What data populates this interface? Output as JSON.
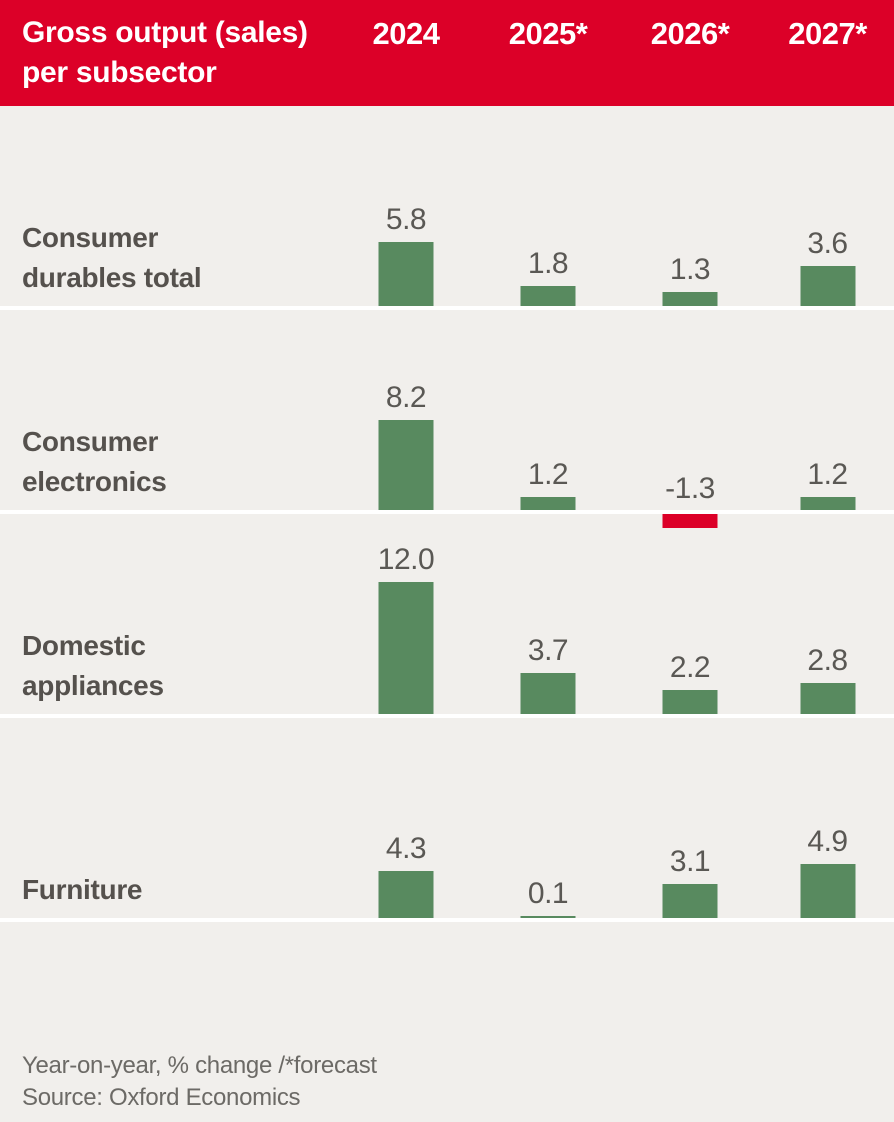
{
  "header": {
    "title_line1": "Gross output (sales)",
    "title_line2": "per subsector",
    "columns": [
      "2024",
      "2025*",
      "2026*",
      "2027*"
    ],
    "background_color": "#dc0028",
    "text_color": "#ffffff"
  },
  "chart_data": {
    "type": "bar",
    "title": "Gross output (sales) per subsector",
    "categories": [
      "2024",
      "2025*",
      "2026*",
      "2027*"
    ],
    "series": [
      {
        "name": "Consumer durables total",
        "values": [
          5.8,
          1.8,
          1.3,
          3.6
        ],
        "display": [
          "5.8",
          "1.8",
          "1.3",
          "3.6"
        ]
      },
      {
        "name": "Consumer electronics",
        "values": [
          8.2,
          1.2,
          -1.3,
          1.2
        ],
        "display": [
          "8.2",
          "1.2",
          "-1.3",
          "1.2"
        ]
      },
      {
        "name": "Domestic appliances",
        "values": [
          12.0,
          3.7,
          2.2,
          2.8
        ],
        "display": [
          "12.0",
          "3.7",
          "2.2",
          "2.8"
        ]
      },
      {
        "name": "Furniture",
        "values": [
          4.3,
          0.1,
          3.1,
          4.9
        ],
        "display": [
          "4.3",
          "0.1",
          "3.1",
          "4.9"
        ]
      }
    ],
    "value_labels": true,
    "legend_position": "none",
    "grid": false,
    "colors": {
      "positive_bar": "#588a5f",
      "negative_bar": "#dc0028",
      "background": "#f1efec"
    }
  },
  "footer": {
    "note": "Year-on-year, % change /*forecast",
    "source": "Source: Oxford Economics"
  }
}
